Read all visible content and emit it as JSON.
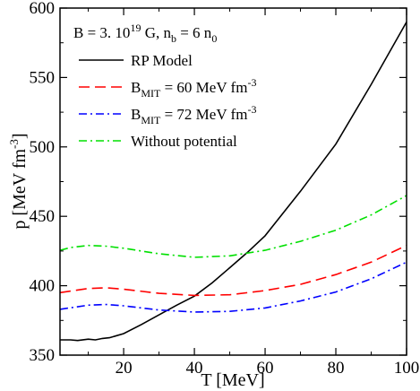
{
  "chart_data": {
    "type": "line",
    "annotation": {
      "b_prefix": "B = 3.  10",
      "b_exp": "19",
      "b_unit": " G,   n",
      "nb_sub": "b",
      "nb_eq": " = 6 n",
      "n0_sub": "0"
    },
    "xlabel": "T [MeV]",
    "ylabel": {
      "main": "p [MeV fm",
      "sup": "-3",
      "close": "]"
    },
    "xlim": [
      2,
      100
    ],
    "ylim": [
      350,
      600
    ],
    "xticks": [
      20,
      40,
      60,
      80,
      100
    ],
    "yticks": [
      350,
      400,
      450,
      500,
      550,
      600
    ],
    "grid": false,
    "legend_position": "top-left",
    "series": [
      {
        "name": "RP Model",
        "legend": {
          "main": "RP Model"
        },
        "color": "#000000",
        "dash": "",
        "x": [
          2,
          5,
          7,
          10,
          12,
          14,
          16,
          20,
          25,
          30,
          35,
          40,
          45,
          50,
          55,
          60,
          70,
          80,
          90,
          100
        ],
        "y": [
          361,
          361,
          360.5,
          361.5,
          361,
          362,
          362.5,
          365.5,
          372,
          379,
          386,
          392.5,
          402,
          413,
          424,
          436,
          468,
          502,
          545,
          590
        ]
      },
      {
        "name": "B_MIT = 60 MeV fm^-3",
        "legend": {
          "main": "B",
          "sub": "MIT",
          "rest": " = 60 MeV fm",
          "sup": "-3"
        },
        "color": "#ff0000",
        "dash": "12,6",
        "x": [
          2,
          10,
          15,
          20,
          30,
          40,
          50,
          60,
          70,
          80,
          90,
          100
        ],
        "y": [
          395,
          398,
          398.5,
          397.5,
          394.5,
          393,
          393.5,
          396.5,
          401,
          408,
          417,
          429
        ]
      },
      {
        "name": "B_MIT = 72 MeV fm^-3",
        "legend": {
          "main": "B",
          "sub": "MIT",
          "rest": " = 72 MeV fm",
          "sup": "-3"
        },
        "color": "#0000ff",
        "dash": "9,4,2,4",
        "x": [
          2,
          10,
          15,
          20,
          30,
          40,
          50,
          60,
          70,
          80,
          90,
          100
        ],
        "y": [
          383,
          386,
          386.5,
          385.5,
          382.5,
          381,
          381.5,
          384,
          389,
          395.5,
          405,
          417
        ]
      },
      {
        "name": "Without potential",
        "legend": {
          "main": "Without potential"
        },
        "color": "#00e000",
        "dash": "9,4,2,4",
        "x": [
          2,
          5,
          10,
          15,
          20,
          30,
          40,
          50,
          60,
          70,
          80,
          90,
          100
        ],
        "y": [
          425.5,
          427.5,
          429,
          428.5,
          427,
          423,
          420.5,
          421.5,
          425.5,
          432,
          440,
          451,
          465
        ]
      }
    ]
  }
}
